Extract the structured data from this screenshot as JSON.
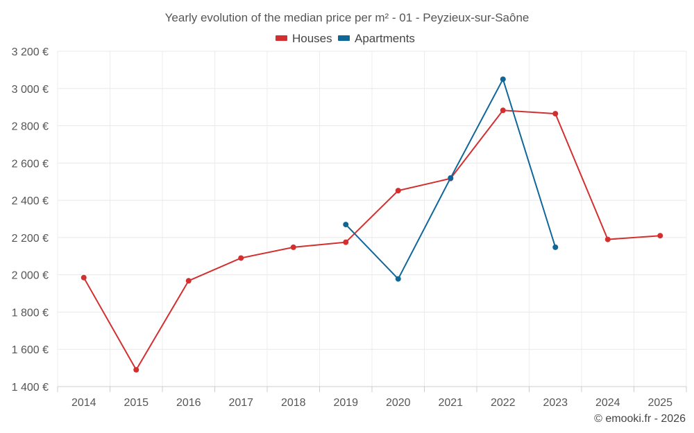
{
  "chart_data": {
    "type": "line",
    "title": "Yearly evolution of the median price per m² - 01 - Peyzieux-sur-Saône",
    "xlabel": "",
    "ylabel": "",
    "categories": [
      "2014",
      "2015",
      "2016",
      "2017",
      "2018",
      "2019",
      "2020",
      "2021",
      "2022",
      "2023",
      "2024",
      "2025"
    ],
    "ylim": [
      1400,
      3200
    ],
    "yticks": [
      1400,
      1600,
      1800,
      2000,
      2200,
      2400,
      2600,
      2800,
      3000,
      3200
    ],
    "ytick_labels": [
      "1 400 €",
      "1 600 €",
      "1 800 €",
      "2 000 €",
      "2 200 €",
      "2 400 €",
      "2 600 €",
      "2 800 €",
      "3 000 €",
      "3 200 €"
    ],
    "grid": true,
    "legend_position": "top-center",
    "series": [
      {
        "name": "Houses",
        "color": "#d32f2f",
        "values": [
          1985,
          1490,
          1968,
          2090,
          2148,
          2175,
          2452,
          2517,
          2883,
          2865,
          2190,
          2210
        ]
      },
      {
        "name": "Apartments",
        "color": "#0f6699",
        "values": [
          null,
          null,
          null,
          null,
          null,
          2270,
          1978,
          2520,
          3050,
          2148,
          null,
          null
        ]
      }
    ],
    "credit": "© emooki.fr - 2026"
  }
}
